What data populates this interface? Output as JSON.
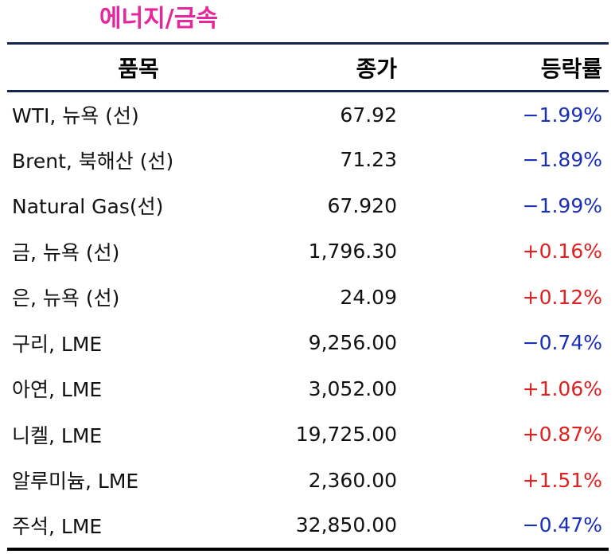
{
  "title": "에너지/금속",
  "colors": {
    "title": "#e6269c",
    "rule": "#15254b",
    "negative": "#1a2fb8",
    "positive": "#e02020"
  },
  "table": {
    "headers": {
      "name": "품목",
      "close": "종가",
      "change": "등락률"
    },
    "rows": [
      {
        "name": "WTI, 뉴욕 (선)",
        "close": "67.92",
        "change": "−1.99%",
        "direction": "neg"
      },
      {
        "name": "Brent, 북해산 (선)",
        "close": "71.23",
        "change": "−1.89%",
        "direction": "neg"
      },
      {
        "name": "Natural Gas(선)",
        "close": "67.920",
        "change": "−1.99%",
        "direction": "neg"
      },
      {
        "name": "금, 뉴욕  (선)",
        "close": "1,796.30",
        "change": "+0.16%",
        "direction": "pos"
      },
      {
        "name": "은, 뉴욕  (선)",
        "close": "24.09",
        "change": "+0.12%",
        "direction": "pos"
      },
      {
        "name": "구리, LME",
        "close": "9,256.00",
        "change": "−0.74%",
        "direction": "neg"
      },
      {
        "name": "아연, LME",
        "close": "3,052.00",
        "change": "+1.06%",
        "direction": "pos"
      },
      {
        "name": "니켈, LME",
        "close": "19,725.00",
        "change": "+0.87%",
        "direction": "pos"
      },
      {
        "name": "알루미늄, LME",
        "close": "2,360.00",
        "change": "+1.51%",
        "direction": "pos"
      },
      {
        "name": "주석, LME",
        "close": "32,850.00",
        "change": "−0.47%",
        "direction": "neg"
      }
    ]
  }
}
